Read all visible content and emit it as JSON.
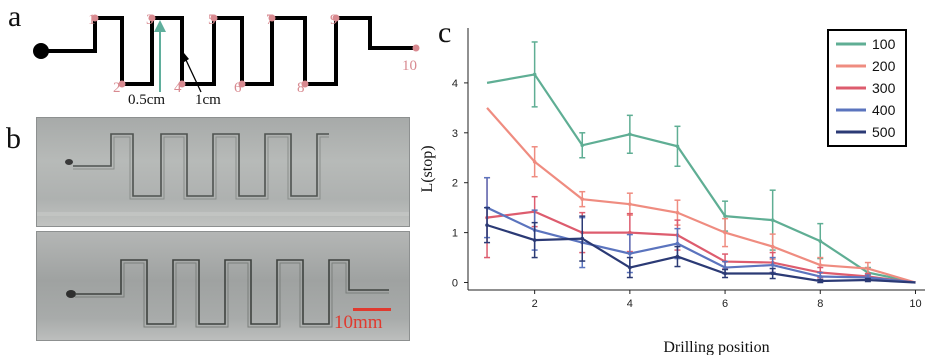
{
  "panels": {
    "a": "a",
    "b": "b",
    "c": "c"
  },
  "diagram_a": {
    "node_labels": [
      "1",
      "2",
      "3",
      "4",
      "5",
      "6",
      "7",
      "8",
      "9",
      "10"
    ],
    "label_color": "#d88a90",
    "line_color": "#000000",
    "arrow_color": "#5fae9c",
    "dimension_labels": [
      "0.5cm",
      "1cm"
    ]
  },
  "panel_b": {
    "scale_bar_label": "10mm",
    "scale_bar_color": "#e03a2f"
  },
  "chart_data": {
    "type": "line",
    "xlabel": "Drilling position",
    "ylabel": "L(stop)",
    "xlim": [
      0.6,
      10.2
    ],
    "ylim": [
      -0.15,
      5.1
    ],
    "xticks": [
      2,
      4,
      6,
      8,
      10
    ],
    "yticks": [
      0,
      1,
      2,
      3,
      4
    ],
    "legend_position": "top-right",
    "x": [
      1,
      2,
      3,
      4,
      5,
      6,
      7,
      8,
      9,
      10
    ],
    "series": [
      {
        "name": "100",
        "color": "#5fae94",
        "values": [
          4.0,
          4.17,
          2.75,
          2.97,
          2.73,
          1.33,
          1.25,
          0.83,
          0.2,
          0.0
        ],
        "errors": [
          0,
          0.65,
          0.25,
          0.38,
          0.4,
          0.3,
          0.6,
          0.35,
          0.1,
          0
        ]
      },
      {
        "name": "200",
        "color": "#ef8c80",
        "values": [
          3.5,
          2.42,
          1.67,
          1.57,
          1.4,
          1.0,
          0.72,
          0.35,
          0.28,
          0.0
        ],
        "errors": [
          0,
          0.3,
          0.15,
          0.22,
          0.25,
          0.28,
          0.25,
          0.15,
          0.12,
          0
        ]
      },
      {
        "name": "300",
        "color": "#dd5c6e",
        "values": [
          1.3,
          1.42,
          1.0,
          1.0,
          0.95,
          0.42,
          0.4,
          0.2,
          0.12,
          0.0
        ],
        "errors": [
          0.8,
          0.3,
          0.4,
          0.38,
          0.3,
          0.15,
          0.2,
          0.1,
          0.06,
          0
        ]
      },
      {
        "name": "400",
        "color": "#5b74be",
        "values": [
          1.5,
          1.05,
          0.8,
          0.58,
          0.78,
          0.3,
          0.35,
          0.12,
          0.1,
          0.0
        ],
        "errors": [
          0.6,
          0.4,
          0.5,
          0.38,
          0.3,
          0.12,
          0.15,
          0.08,
          0.05,
          0
        ]
      },
      {
        "name": "500",
        "color": "#2b3a75",
        "values": [
          1.15,
          0.85,
          0.88,
          0.3,
          0.52,
          0.18,
          0.18,
          0.03,
          0.05,
          0.0
        ],
        "errors": [
          0.35,
          0.35,
          0.45,
          0.2,
          0.2,
          0.08,
          0.1,
          0.03,
          0.03,
          0
        ]
      }
    ]
  }
}
